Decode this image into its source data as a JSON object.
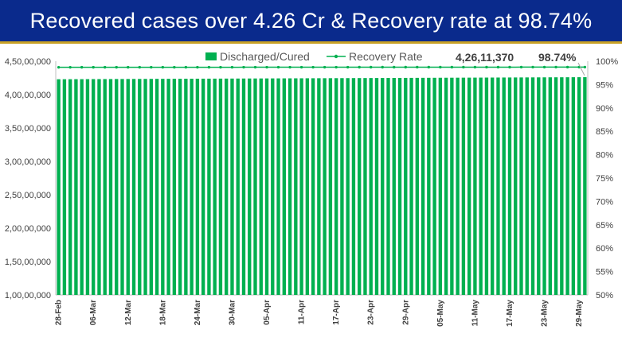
{
  "header": {
    "title": "Recovered cases over 4.26 Cr & Recovery rate at 98.74%"
  },
  "colors": {
    "header_bg": "#0a2a8c",
    "bar": "#00b050",
    "line": "#00b050",
    "text": "#404040"
  },
  "chart_data": {
    "type": "bar",
    "legend": [
      "Discharged/Cured",
      "Recovery Rate"
    ],
    "legend_position": "top",
    "callouts": {
      "last_value_label": "4,26,11,370",
      "last_rate_label": "98.74%"
    },
    "x_tick_labels": [
      "28-Feb",
      "06-Mar",
      "12-Mar",
      "18-Mar",
      "24-Mar",
      "30-Mar",
      "05-Apr",
      "11-Apr",
      "17-Apr",
      "23-Apr",
      "29-Apr",
      "05-May",
      "11-May",
      "17-May",
      "23-May",
      "29-May"
    ],
    "x_range": [
      "28-Feb",
      "29-May"
    ],
    "y_left": {
      "ylim": [
        10000000,
        45000000
      ],
      "tick_labels": [
        "1,00,00,000",
        "1,50,00,000",
        "2,00,00,000",
        "2,50,00,000",
        "3,00,00,000",
        "3,50,00,000",
        "4,00,00,000",
        "4,50,00,000"
      ]
    },
    "y_right": {
      "ylim": [
        50,
        100
      ],
      "tick_labels": [
        "50%",
        "55%",
        "60%",
        "65%",
        "70%",
        "75%",
        "80%",
        "85%",
        "90%",
        "95%",
        "100%"
      ]
    },
    "grid": false,
    "series": [
      {
        "name": "Discharged/Cured",
        "type": "bar",
        "axis": "left",
        "start_value": 42300000,
        "end_value": 42611370
      },
      {
        "name": "Recovery Rate",
        "type": "line",
        "axis": "right",
        "start_value": 98.7,
        "end_value": 98.74
      }
    ]
  }
}
